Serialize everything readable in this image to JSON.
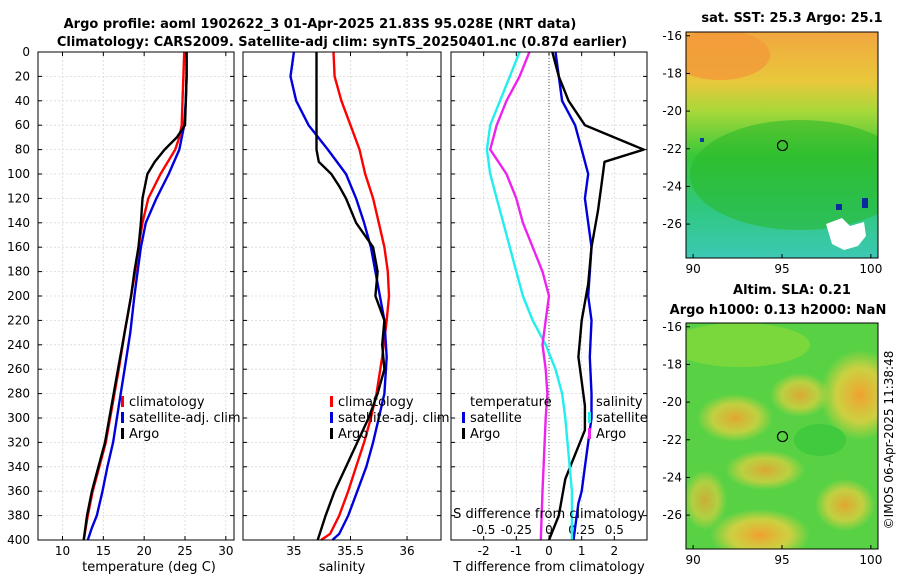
{
  "title": {
    "line1": "Argo profile: aoml 1902622_3 01-Apr-2025 21.83S 95.028E (NRT data)",
    "line2": "Climatology: CARS2009. Satellite-adj clim: synTS_20250401.nc (0.87d earlier)"
  },
  "copyright": "©IMOS 06-Apr-2025 11:38:48",
  "colors": {
    "climatology": "#ff0000",
    "satellite": "#0000dd",
    "argo": "#000000",
    "cyan": "#22eeee",
    "magenta": "#ee22ee"
  },
  "chart_data": [
    {
      "type": "line",
      "id": "temperature",
      "xlabel": "temperature (deg C)",
      "ylabel": "",
      "xlim": [
        7,
        31
      ],
      "ylim": [
        0,
        400
      ],
      "xticks": [
        10,
        15,
        20,
        25,
        30
      ],
      "yticks": [
        0,
        20,
        40,
        60,
        80,
        100,
        120,
        140,
        160,
        180,
        200,
        220,
        240,
        260,
        280,
        300,
        320,
        340,
        360,
        380,
        400
      ],
      "grid": true,
      "legend": [
        "climatology",
        "satellite-adj. clim",
        "Argo"
      ],
      "series": [
        {
          "name": "climatology",
          "color": "#ff0000",
          "x": [
            24.9,
            24.8,
            24.7,
            24.6,
            24.3,
            23.8,
            22.0,
            20.5,
            19.8,
            19.3,
            18.9,
            18.4,
            17.6,
            16.9,
            16.1,
            15.3,
            14.5,
            13.7,
            13.1,
            12.6
          ],
          "y": [
            0,
            20,
            40,
            60,
            70,
            80,
            100,
            120,
            140,
            160,
            180,
            200,
            230,
            260,
            290,
            320,
            340,
            360,
            380,
            400
          ]
        },
        {
          "name": "satellite-adj. clim",
          "color": "#0000dd",
          "x": [
            25.2,
            25.2,
            25.1,
            24.9,
            24.3,
            23.0,
            21.5,
            20.2,
            19.6,
            19.2,
            18.8,
            18.3,
            17.6,
            16.9,
            16.2,
            15.5,
            14.9,
            14.2,
            13.6,
            13.1
          ],
          "y": [
            0,
            20,
            40,
            60,
            80,
            100,
            120,
            140,
            160,
            180,
            200,
            230,
            260,
            290,
            320,
            340,
            360,
            380,
            390,
            400
          ]
        },
        {
          "name": "Argo",
          "color": "#000000",
          "x": [
            25.2,
            25.2,
            25.1,
            25.0,
            24.0,
            22.5,
            21.3,
            20.4,
            19.8,
            19.6,
            19.3,
            18.8,
            18.4,
            17.6,
            16.8,
            16.0,
            15.2,
            14.4,
            13.6,
            13.0,
            12.6
          ],
          "y": [
            0,
            20,
            40,
            60,
            70,
            80,
            90,
            100,
            120,
            140,
            160,
            180,
            200,
            230,
            260,
            290,
            320,
            340,
            360,
            380,
            400
          ]
        }
      ]
    },
    {
      "type": "line",
      "id": "salinity",
      "xlabel": "salinity",
      "ylabel": "",
      "xlim": [
        34.55,
        36.3
      ],
      "ylim": [
        0,
        400
      ],
      "xticks": [
        35,
        35.5,
        36
      ],
      "xticklabels": [
        "35",
        "35.5",
        "36"
      ],
      "grid": true,
      "legend": [
        "climatology",
        "satellite-adj. clim",
        "Argo"
      ],
      "series": [
        {
          "name": "climatology",
          "color": "#ff0000",
          "x": [
            35.35,
            35.36,
            35.42,
            35.5,
            35.58,
            35.63,
            35.7,
            35.75,
            35.8,
            35.83,
            35.84,
            35.82,
            35.78,
            35.73,
            35.68,
            35.62,
            35.55,
            35.48,
            35.4,
            35.32,
            35.24
          ],
          "y": [
            0,
            20,
            40,
            60,
            80,
            100,
            120,
            140,
            160,
            180,
            200,
            220,
            250,
            280,
            300,
            320,
            340,
            360,
            380,
            395,
            400
          ]
        },
        {
          "name": "satellite-adj. clim",
          "color": "#0000dd",
          "x": [
            35.0,
            34.97,
            35.02,
            35.13,
            35.3,
            35.46,
            35.55,
            35.62,
            35.68,
            35.72,
            35.76,
            35.8,
            35.82,
            35.8,
            35.75,
            35.7,
            35.64,
            35.56,
            35.48,
            35.4,
            35.34
          ],
          "y": [
            0,
            20,
            40,
            60,
            80,
            100,
            120,
            140,
            160,
            180,
            200,
            220,
            250,
            280,
            300,
            320,
            340,
            360,
            380,
            395,
            400
          ]
        },
        {
          "name": "Argo",
          "color": "#000000",
          "x": [
            35.2,
            35.2,
            35.2,
            35.2,
            35.2,
            35.22,
            35.33,
            35.4,
            35.46,
            35.55,
            35.7,
            35.74,
            35.72,
            35.8,
            35.78,
            35.8,
            35.74,
            35.66,
            35.56,
            35.46,
            35.36,
            35.28,
            35.21
          ],
          "y": [
            0,
            20,
            40,
            60,
            80,
            90,
            100,
            110,
            120,
            140,
            160,
            180,
            200,
            220,
            240,
            260,
            280,
            300,
            320,
            340,
            360,
            380,
            400
          ]
        }
      ]
    },
    {
      "type": "line",
      "id": "difference",
      "xlabel": "T difference from climatology",
      "x2label": "S difference from climatology",
      "ylabel": "",
      "xlim": [
        -3,
        3
      ],
      "ylim": [
        0,
        400
      ],
      "xticks": [
        -2,
        -1,
        0,
        1,
        2
      ],
      "x2ticklabels": [
        "-0.5",
        "-0.25",
        "0",
        "0.25",
        "0.5"
      ],
      "grid": true,
      "legend_left": {
        "header": "temperature",
        "items": [
          "satellite",
          "Argo"
        ]
      },
      "legend_right": {
        "header": "salinity",
        "items": [
          "satellite",
          "Argo"
        ]
      },
      "series": [
        {
          "name": "temperature satellite",
          "color": "#0000dd",
          "x": [
            0.2,
            0.3,
            0.4,
            0.8,
            1.0,
            1.2,
            1.1,
            1.3,
            1.2,
            1.3,
            1.25,
            1.3,
            1.3,
            1.2,
            1.1,
            1.0,
            0.9,
            0.8,
            0.75
          ],
          "y": [
            0,
            20,
            40,
            60,
            80,
            100,
            120,
            160,
            200,
            220,
            250,
            280,
            300,
            320,
            340,
            360,
            370,
            390,
            400
          ]
        },
        {
          "name": "temperature Argo",
          "color": "#000000",
          "x": [
            0.1,
            0.3,
            0.6,
            1.1,
            2.9,
            1.7,
            1.6,
            1.5,
            1.3,
            1.2,
            1.0,
            0.9,
            1.0,
            1.1,
            1.1,
            0.8,
            0.5,
            0.3,
            0.0
          ],
          "y": [
            0,
            20,
            40,
            60,
            80,
            90,
            110,
            130,
            160,
            190,
            220,
            250,
            270,
            290,
            310,
            330,
            350,
            380,
            400
          ]
        },
        {
          "name": "salinity satellite",
          "color": "#22eeee",
          "x": [
            -0.9,
            -1.2,
            -1.5,
            -1.8,
            -1.9,
            -1.8,
            -1.6,
            -1.4,
            -1.2,
            -1.0,
            -0.8,
            -0.5,
            -0.1,
            0.2,
            0.4,
            0.5,
            0.6,
            0.7,
            0.7
          ],
          "y": [
            0,
            20,
            40,
            60,
            80,
            100,
            120,
            140,
            160,
            180,
            200,
            220,
            240,
            260,
            280,
            300,
            330,
            360,
            400
          ]
        },
        {
          "name": "salinity Argo",
          "color": "#ee22ee",
          "x": [
            -0.6,
            -0.9,
            -1.3,
            -1.6,
            -1.8,
            -1.3,
            -1.0,
            -0.8,
            -0.5,
            -0.2,
            0.0,
            -0.1,
            -0.2,
            -0.1,
            -0.05,
            -0.1,
            -0.15,
            -0.2,
            -0.25
          ],
          "y": [
            0,
            20,
            40,
            60,
            80,
            100,
            120,
            140,
            160,
            180,
            200,
            220,
            240,
            260,
            280,
            300,
            330,
            360,
            400
          ]
        }
      ]
    },
    {
      "type": "heatmap",
      "id": "sst",
      "title": "sat. SST: 25.3 Argo: 25.1",
      "xlim": [
        89.6,
        100.4
      ],
      "ylim": [
        -27.8,
        -15.8
      ],
      "xticks": [
        90,
        95,
        100
      ],
      "yticks": [
        -16,
        -18,
        -20,
        -22,
        -24,
        -26
      ],
      "marker": {
        "lon": 95.028,
        "lat": -21.83
      }
    },
    {
      "type": "heatmap",
      "id": "sla",
      "title": "Altim. SLA: 0.21",
      "subtitle": "Argo h1000: 0.13 h2000: NaN",
      "xlim": [
        89.6,
        100.4
      ],
      "ylim": [
        -27.8,
        -15.8
      ],
      "xticks": [
        90,
        95,
        100
      ],
      "yticks": [
        -16,
        -18,
        -20,
        -22,
        -24,
        -26
      ],
      "marker": {
        "lon": 95.028,
        "lat": -21.83
      }
    }
  ]
}
